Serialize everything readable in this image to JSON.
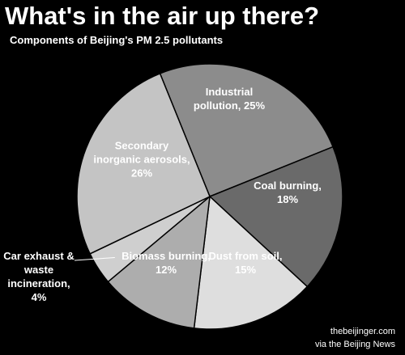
{
  "chart_data": {
    "type": "pie",
    "title": "What's in the air up there?",
    "subtitle": "Components of Beijing's PM 2.5 pollutants",
    "categories": [
      "Industrial pollution,",
      "Coal burning,",
      "Dust from soil,",
      "Biomass burning,",
      "Car exhaust & waste incineration,",
      "Secondary inorganic aerosols,"
    ],
    "values": [
      25,
      18,
      15,
      12,
      4,
      26
    ],
    "value_labels": [
      "25%",
      "18%",
      "15%",
      "12%",
      "4%",
      "26%"
    ],
    "colors": [
      "#8c8c8c",
      "#6a6a6a",
      "#dedede",
      "#adadad",
      "#cfcfcf",
      "#c4c4c4"
    ],
    "source": [
      "thebeijinger.com",
      "via the Beijing News"
    ]
  }
}
